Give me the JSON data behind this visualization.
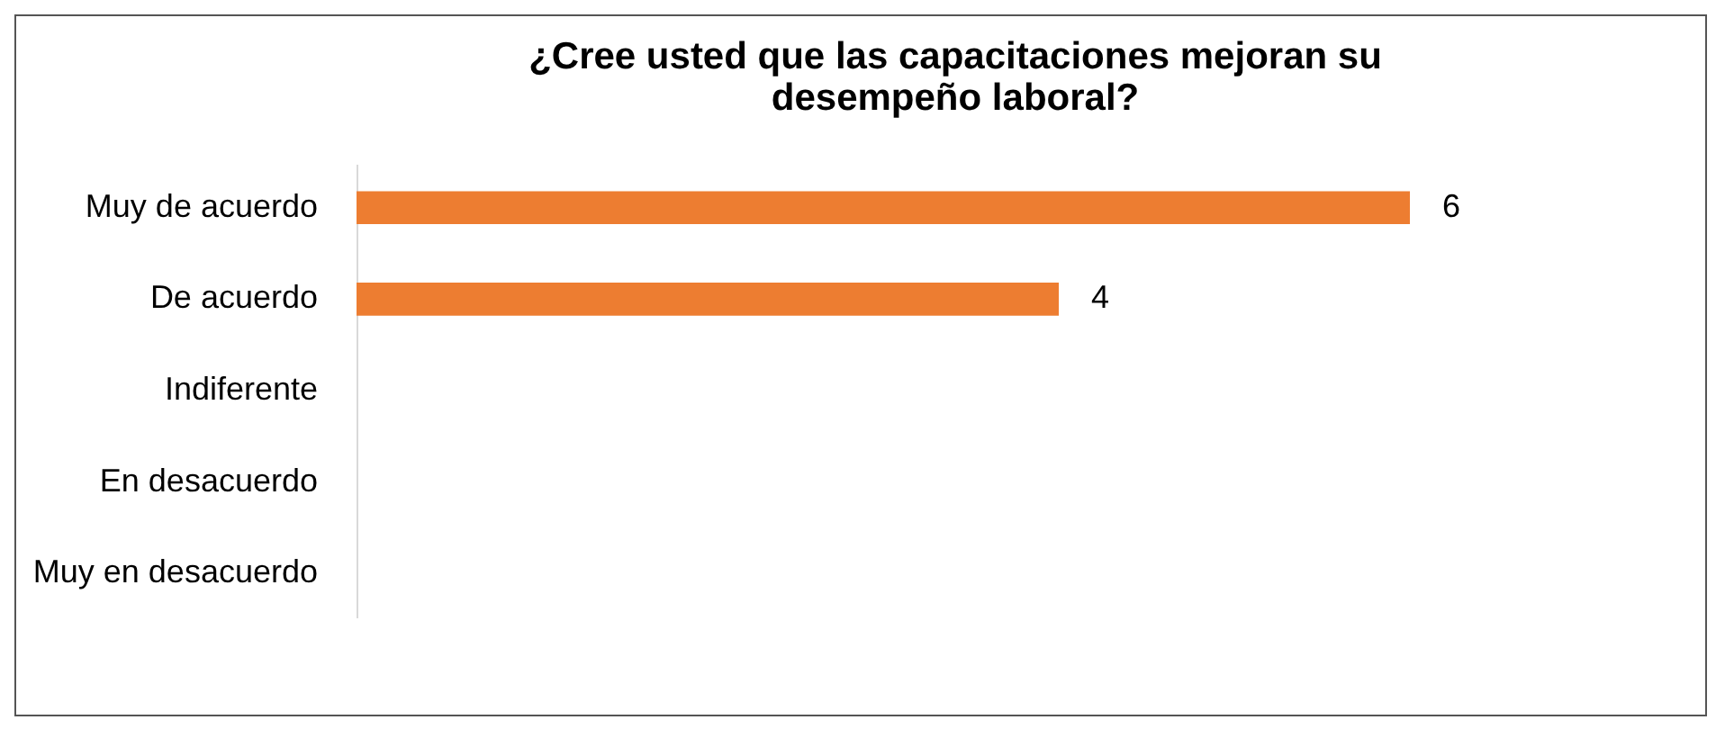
{
  "chart_data": {
    "type": "bar",
    "orientation": "horizontal",
    "title": "¿Cree usted que las capacitaciones mejoran su desempeño laboral?",
    "categories": [
      "Muy de acuerdo",
      "De acuerdo",
      "Indiferente",
      "En desacuerdo",
      "Muy en desacuerdo"
    ],
    "values": [
      6,
      4,
      null,
      null,
      null
    ],
    "color": "#ed7d31",
    "data_labels": true
  }
}
